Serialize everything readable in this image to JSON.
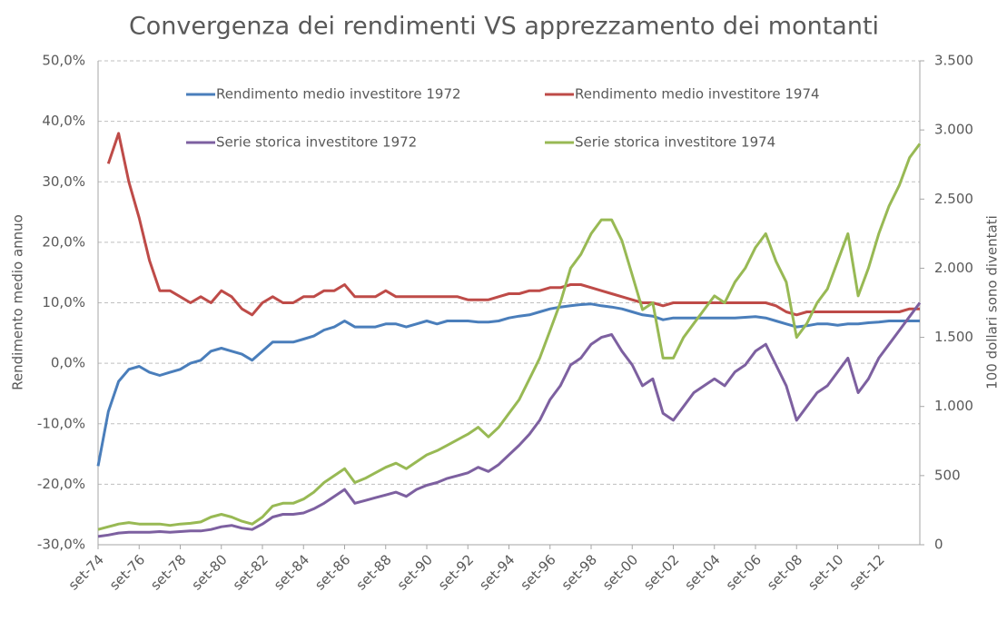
{
  "chart_data": {
    "type": "line",
    "title": "Convergenza dei rendimenti VS apprezzamento dei montanti",
    "y_label": "Rendimento medio annuo",
    "y2_label": "100 dollari sono diventati",
    "legend": "top",
    "grid": true,
    "categories": [
      "set-74",
      null,
      null,
      null,
      "set-76",
      null,
      null,
      null,
      "set-78",
      null,
      null,
      null,
      "set-80",
      null,
      null,
      null,
      "set-82",
      null,
      null,
      null,
      "set-84",
      null,
      null,
      null,
      "set-86",
      null,
      null,
      null,
      "set-88",
      null,
      null,
      null,
      "set-90",
      null,
      null,
      null,
      "set-92",
      null,
      null,
      null,
      "set-94",
      null,
      null,
      null,
      "set-96",
      null,
      null,
      null,
      "set-98",
      null,
      null,
      null,
      "set-00",
      null,
      null,
      null,
      "set-02",
      null,
      null,
      null,
      "set-04",
      null,
      null,
      null,
      "set-06",
      null,
      null,
      null,
      "set-08",
      null,
      null,
      null,
      "set-10",
      null,
      null,
      null,
      "set-12",
      null,
      null,
      null,
      null
    ],
    "ylim": [
      -30,
      50
    ],
    "yticks": [
      {
        "value": -30,
        "label": "-30,0%"
      },
      {
        "value": -20,
        "label": "-20,0%"
      },
      {
        "value": -10,
        "label": "-10,0%"
      },
      {
        "value": 0,
        "label": "0,0%"
      },
      {
        "value": 10,
        "label": "10,0%"
      },
      {
        "value": 20,
        "label": "20,0%"
      },
      {
        "value": 30,
        "label": "30,0%"
      },
      {
        "value": 40,
        "label": "40,0%"
      },
      {
        "value": 50,
        "label": "50,0%"
      }
    ],
    "y2lim": [
      0,
      3500
    ],
    "y2ticks": [
      0,
      500,
      {
        "value": 1000,
        "label": "1.000"
      },
      {
        "value": 1500,
        "label": "1.500"
      },
      {
        "value": 2000,
        "label": "2.000"
      },
      {
        "value": 2500,
        "label": "2.500"
      },
      {
        "value": 3000,
        "label": "3.000"
      },
      {
        "value": 3500,
        "label": "3.500"
      }
    ],
    "series": [
      {
        "name": "Rendimento medio investitore 1972",
        "color": "#4a7ebb",
        "values": [
          -17,
          -8,
          -3,
          -1,
          -0.5,
          -1.5,
          -2,
          -1.5,
          -1,
          0,
          0.5,
          2,
          2.5,
          2,
          1.5,
          0.5,
          2,
          3.5,
          3.5,
          3.5,
          4,
          4.5,
          5.5,
          6,
          7,
          6,
          6,
          6,
          6.5,
          6.5,
          6,
          6.5,
          7,
          6.5,
          7,
          7,
          7,
          6.8,
          6.8,
          7,
          7.5,
          7.8,
          8,
          8.5,
          9,
          9.3,
          9.5,
          9.7,
          9.8,
          9.5,
          9.3,
          9,
          8.5,
          8,
          7.8,
          7.2,
          7.5,
          7.5,
          7.5,
          7.5,
          7.5,
          7.5,
          7.5,
          7.6,
          7.7,
          7.5,
          7,
          6.5,
          6,
          6.2,
          6.5,
          6.5,
          6.3,
          6.5,
          6.5,
          6.7,
          6.8,
          7,
          7,
          7,
          7
        ]
      },
      {
        "name": "Rendimento medio investitore 1974",
        "color": "#be4b48",
        "values": [
          null,
          33,
          38,
          30,
          24,
          17,
          12,
          12,
          11,
          10,
          11,
          10,
          12,
          11,
          9,
          8,
          10,
          11,
          10,
          10,
          11,
          11,
          12,
          12,
          13,
          11,
          11,
          11,
          12,
          11,
          11,
          11,
          11,
          11,
          11,
          11,
          10.5,
          10.5,
          10.5,
          11,
          11.5,
          11.5,
          12,
          12,
          12.5,
          12.5,
          13,
          13,
          12.5,
          12,
          11.5,
          11,
          10.5,
          10,
          10,
          9.5,
          10,
          10,
          10,
          10,
          10,
          10,
          10,
          10,
          10,
          10,
          9.5,
          8.5,
          8,
          8.5,
          8.5,
          8.5,
          8.5,
          8.5,
          8.5,
          8.5,
          8.5,
          8.5,
          8.5,
          9,
          9
        ]
      },
      {
        "name": "Serie storica investitore 1972",
        "color": "#7d60a0",
        "axis": "y2",
        "values": [
          60,
          70,
          85,
          90,
          90,
          90,
          95,
          90,
          95,
          100,
          100,
          110,
          130,
          140,
          120,
          110,
          150,
          200,
          220,
          220,
          230,
          260,
          300,
          350,
          400,
          300,
          320,
          340,
          360,
          380,
          350,
          400,
          430,
          450,
          480,
          500,
          520,
          560,
          530,
          580,
          650,
          720,
          800,
          900,
          1050,
          1150,
          1300,
          1350,
          1450,
          1500,
          1520,
          1400,
          1300,
          1150,
          1200,
          950,
          900,
          1000,
          1100,
          1150,
          1200,
          1150,
          1250,
          1300,
          1400,
          1450,
          1300,
          1150,
          900,
          1000,
          1100,
          1150,
          1250,
          1350,
          1100,
          1200,
          1350,
          1450,
          1550,
          1650,
          1750
        ]
      },
      {
        "name": "Serie storica investitore 1974",
        "color": "#98b954",
        "axis": "y2",
        "values": [
          110,
          130,
          150,
          160,
          150,
          150,
          150,
          140,
          150,
          155,
          165,
          200,
          220,
          200,
          170,
          150,
          200,
          280,
          300,
          300,
          330,
          380,
          450,
          500,
          550,
          450,
          480,
          520,
          560,
          590,
          550,
          600,
          650,
          680,
          720,
          760,
          800,
          850,
          780,
          850,
          950,
          1050,
          1200,
          1350,
          1550,
          1750,
          2000,
          2100,
          2250,
          2350,
          2350,
          2200,
          1950,
          1700,
          1750,
          1350,
          1350,
          1500,
          1600,
          1700,
          1800,
          1750,
          1900,
          2000,
          2150,
          2250,
          2050,
          1900,
          1500,
          1600,
          1750,
          1850,
          2050,
          2250,
          1800,
          2000,
          2250,
          2450,
          2600,
          2800,
          2900
        ]
      }
    ]
  }
}
